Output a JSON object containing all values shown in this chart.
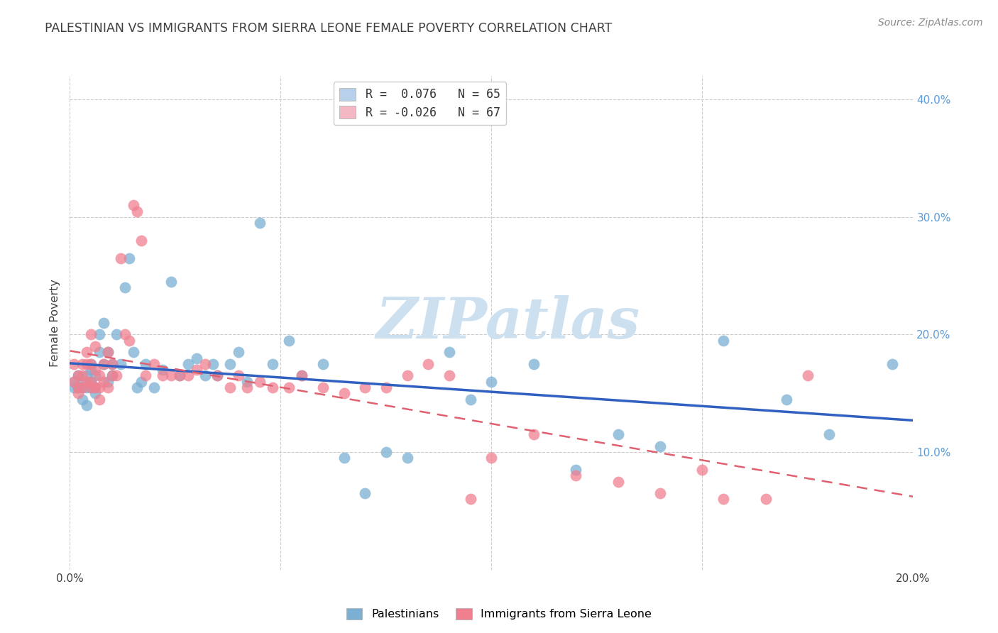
{
  "title": "PALESTINIAN VS IMMIGRANTS FROM SIERRA LEONE FEMALE POVERTY CORRELATION CHART",
  "source": "Source: ZipAtlas.com",
  "ylabel": "Female Poverty",
  "xlim": [
    0.0,
    0.2
  ],
  "ylim": [
    0.0,
    0.42
  ],
  "xtick_positions": [
    0.0,
    0.05,
    0.1,
    0.15,
    0.2
  ],
  "xtick_labels": [
    "0.0%",
    "",
    "",
    "",
    "20.0%"
  ],
  "ytick_positions": [
    0.0,
    0.1,
    0.2,
    0.3,
    0.4
  ],
  "ytick_labels": [
    "",
    "10.0%",
    "20.0%",
    "30.0%",
    "40.0%"
  ],
  "legend_entries": [
    {
      "label": "R =  0.076   N = 65",
      "color": "#b8d0ea"
    },
    {
      "label": "R = -0.026   N = 67",
      "color": "#f4b8c4"
    }
  ],
  "series1_label": "Palestinians",
  "series2_label": "Immigrants from Sierra Leone",
  "series1_color": "#7bafd4",
  "series2_color": "#f08090",
  "series1_line_color": "#3060c0",
  "series2_line_color": "#e06070",
  "series2_line_style": "--",
  "watermark_text": "ZIPatlas",
  "watermark_color": "#cce0f0",
  "background_color": "#ffffff",
  "grid_color": "#cccccc",
  "title_color": "#404040",
  "right_ytick_color": "#5b9bd5",
  "series1_x": [
    0.001,
    0.001,
    0.002,
    0.002,
    0.003,
    0.003,
    0.003,
    0.004,
    0.004,
    0.004,
    0.005,
    0.005,
    0.005,
    0.005,
    0.006,
    0.006,
    0.006,
    0.007,
    0.007,
    0.008,
    0.008,
    0.009,
    0.009,
    0.01,
    0.01,
    0.011,
    0.012,
    0.013,
    0.014,
    0.015,
    0.016,
    0.017,
    0.018,
    0.02,
    0.022,
    0.024,
    0.026,
    0.028,
    0.03,
    0.032,
    0.034,
    0.035,
    0.038,
    0.04,
    0.042,
    0.045,
    0.048,
    0.052,
    0.055,
    0.06,
    0.065,
    0.07,
    0.075,
    0.08,
    0.09,
    0.095,
    0.1,
    0.11,
    0.12,
    0.13,
    0.14,
    0.155,
    0.17,
    0.18,
    0.195
  ],
  "series1_y": [
    0.16,
    0.155,
    0.165,
    0.155,
    0.155,
    0.16,
    0.145,
    0.165,
    0.155,
    0.14,
    0.175,
    0.16,
    0.17,
    0.155,
    0.165,
    0.155,
    0.15,
    0.2,
    0.185,
    0.21,
    0.175,
    0.185,
    0.16,
    0.175,
    0.165,
    0.2,
    0.175,
    0.24,
    0.265,
    0.185,
    0.155,
    0.16,
    0.175,
    0.155,
    0.17,
    0.245,
    0.165,
    0.175,
    0.18,
    0.165,
    0.175,
    0.165,
    0.175,
    0.185,
    0.16,
    0.295,
    0.175,
    0.195,
    0.165,
    0.175,
    0.095,
    0.065,
    0.1,
    0.095,
    0.185,
    0.145,
    0.16,
    0.175,
    0.085,
    0.115,
    0.105,
    0.195,
    0.145,
    0.115,
    0.175
  ],
  "series2_x": [
    0.001,
    0.001,
    0.002,
    0.002,
    0.002,
    0.003,
    0.003,
    0.003,
    0.004,
    0.004,
    0.004,
    0.005,
    0.005,
    0.005,
    0.005,
    0.006,
    0.006,
    0.006,
    0.007,
    0.007,
    0.007,
    0.008,
    0.008,
    0.009,
    0.009,
    0.01,
    0.01,
    0.011,
    0.012,
    0.013,
    0.014,
    0.015,
    0.016,
    0.017,
    0.018,
    0.02,
    0.022,
    0.024,
    0.026,
    0.028,
    0.03,
    0.032,
    0.035,
    0.038,
    0.04,
    0.042,
    0.045,
    0.048,
    0.052,
    0.055,
    0.06,
    0.065,
    0.07,
    0.075,
    0.08,
    0.085,
    0.09,
    0.095,
    0.1,
    0.11,
    0.12,
    0.13,
    0.14,
    0.15,
    0.155,
    0.165,
    0.175
  ],
  "series2_y": [
    0.175,
    0.16,
    0.165,
    0.155,
    0.15,
    0.175,
    0.165,
    0.155,
    0.185,
    0.16,
    0.175,
    0.2,
    0.175,
    0.16,
    0.155,
    0.19,
    0.17,
    0.155,
    0.165,
    0.155,
    0.145,
    0.175,
    0.16,
    0.185,
    0.155,
    0.175,
    0.165,
    0.165,
    0.265,
    0.2,
    0.195,
    0.31,
    0.305,
    0.28,
    0.165,
    0.175,
    0.165,
    0.165,
    0.165,
    0.165,
    0.17,
    0.175,
    0.165,
    0.155,
    0.165,
    0.155,
    0.16,
    0.155,
    0.155,
    0.165,
    0.155,
    0.15,
    0.155,
    0.155,
    0.165,
    0.175,
    0.165,
    0.06,
    0.095,
    0.115,
    0.08,
    0.075,
    0.065,
    0.085,
    0.06,
    0.06,
    0.165
  ]
}
